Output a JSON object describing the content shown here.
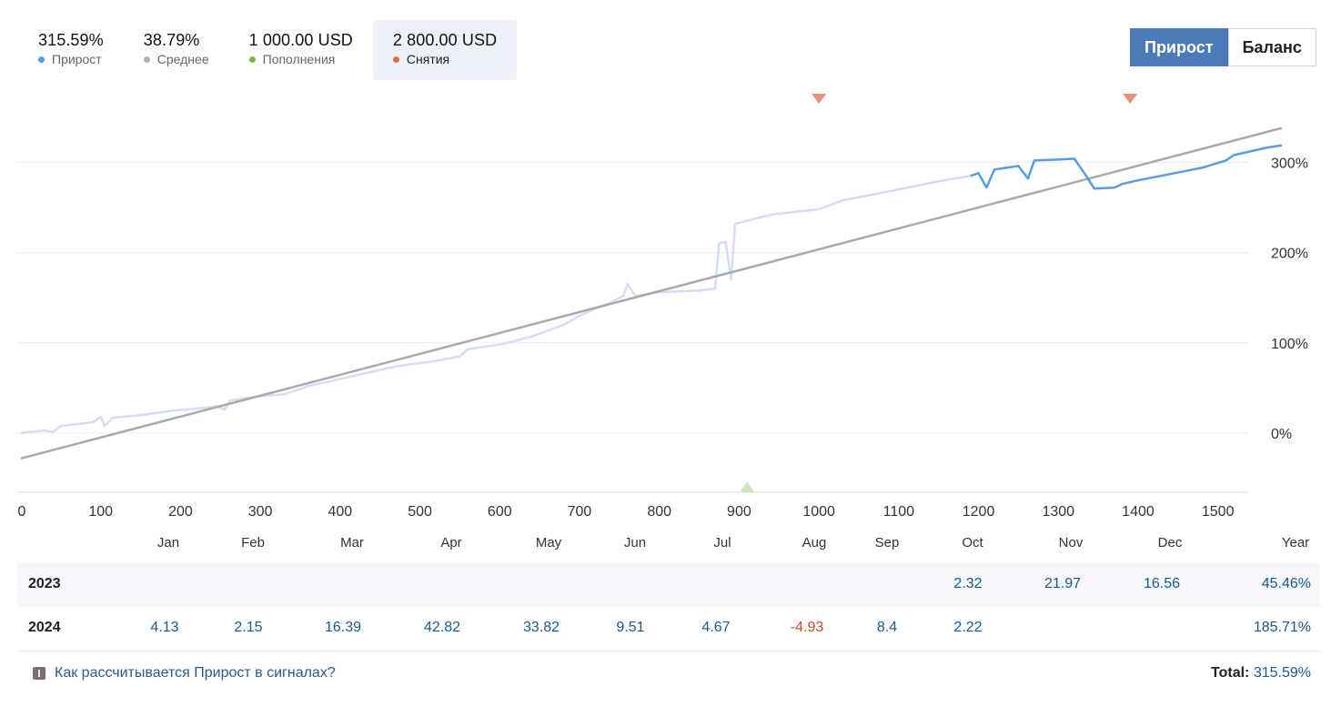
{
  "stats": [
    {
      "value": "315.59%",
      "label": "Прирост",
      "color": "#5b9be0",
      "active": false
    },
    {
      "value": "38.79%",
      "label": "Среднее",
      "color": "#b0b0b0",
      "active": false
    },
    {
      "value": "1 000.00 USD",
      "label": "Пополнения",
      "color": "#7ab648",
      "active": false
    },
    {
      "value": "2 800.00 USD",
      "label": "Снятия",
      "color": "#e06a4a",
      "active": true
    }
  ],
  "toggle": {
    "growth_label": "Прирост",
    "balance_label": "Баланс",
    "selected": "growth"
  },
  "chart_data": {
    "type": "line",
    "xlim": [
      0,
      1530
    ],
    "ylim": [
      -65,
      325
    ],
    "x_ticks": [
      "0",
      "100",
      "200",
      "300",
      "400",
      "500",
      "600",
      "700",
      "800",
      "900",
      "1000",
      "1100",
      "1200",
      "1300",
      "1400",
      "1500"
    ],
    "y_ticks": [
      "0%",
      "100%",
      "200%",
      "300%"
    ],
    "y_tick_values": [
      0,
      100,
      200,
      300
    ],
    "grid": "horizontal",
    "series": [
      {
        "role": "growth",
        "color": "#5b9be0",
        "faded_color": "#d3ddf3",
        "highlight_from_x": 1185,
        "points": [
          [
            0,
            0
          ],
          [
            30,
            3
          ],
          [
            40,
            1
          ],
          [
            50,
            8
          ],
          [
            90,
            12
          ],
          [
            100,
            18
          ],
          [
            105,
            8
          ],
          [
            115,
            17
          ],
          [
            150,
            20
          ],
          [
            190,
            25
          ],
          [
            230,
            28
          ],
          [
            245,
            30
          ],
          [
            255,
            26
          ],
          [
            262,
            36
          ],
          [
            290,
            40
          ],
          [
            330,
            43
          ],
          [
            360,
            52
          ],
          [
            400,
            60
          ],
          [
            430,
            66
          ],
          [
            470,
            74
          ],
          [
            520,
            80
          ],
          [
            550,
            85
          ],
          [
            560,
            93
          ],
          [
            600,
            98
          ],
          [
            640,
            107
          ],
          [
            680,
            120
          ],
          [
            700,
            130
          ],
          [
            720,
            138
          ],
          [
            740,
            145
          ],
          [
            755,
            152
          ],
          [
            760,
            165
          ],
          [
            770,
            152
          ],
          [
            800,
            156
          ],
          [
            850,
            158
          ],
          [
            870,
            160
          ],
          [
            875,
            210
          ],
          [
            883,
            212
          ],
          [
            890,
            170
          ],
          [
            895,
            232
          ],
          [
            940,
            242
          ],
          [
            1000,
            248
          ],
          [
            1030,
            258
          ],
          [
            1060,
            263
          ],
          [
            1100,
            270
          ],
          [
            1150,
            279
          ],
          [
            1190,
            285
          ],
          [
            1200,
            288
          ],
          [
            1210,
            272
          ],
          [
            1220,
            292
          ],
          [
            1250,
            296
          ],
          [
            1262,
            282
          ],
          [
            1270,
            302
          ],
          [
            1300,
            303
          ],
          [
            1320,
            304
          ],
          [
            1335,
            285
          ],
          [
            1345,
            271
          ],
          [
            1370,
            272
          ],
          [
            1380,
            276
          ],
          [
            1400,
            280
          ],
          [
            1440,
            287
          ],
          [
            1480,
            294
          ],
          [
            1510,
            302
          ],
          [
            1520,
            308
          ],
          [
            1560,
            316
          ],
          [
            1580,
            319
          ]
        ]
      },
      {
        "role": "average",
        "color": "#aaaaaa",
        "points": [
          [
            0,
            -28
          ],
          [
            1580,
            338
          ]
        ]
      }
    ],
    "markers": [
      {
        "type": "withdrawal",
        "x": 1000,
        "color": "#e8907a"
      },
      {
        "type": "withdrawal",
        "x": 1390,
        "color": "#e8907a"
      },
      {
        "type": "deposit",
        "x": 910,
        "color": "#cde6be"
      }
    ]
  },
  "table": {
    "months": [
      "Jan",
      "Feb",
      "Mar",
      "Apr",
      "May",
      "Jun",
      "Jul",
      "Aug",
      "Sep",
      "Oct",
      "Nov",
      "Dec"
    ],
    "year_header": "Year",
    "rows": [
      {
        "year": "2023",
        "values": [
          "",
          "",
          "",
          "",
          "",
          "",
          "",
          "",
          "",
          "2.32",
          "21.97",
          "16.56"
        ],
        "total": "45.46%"
      },
      {
        "year": "2024",
        "values": [
          "4.13",
          "2.15",
          "16.39",
          "42.82",
          "33.82",
          "9.51",
          "4.67",
          "-4.93",
          "8.4",
          "2.22",
          "",
          ""
        ],
        "total": "185.71%"
      }
    ]
  },
  "footer": {
    "link_text": "Как рассчитывается Прирост в сигналах?",
    "total_label": "Total:",
    "total_value": "315.59%"
  }
}
